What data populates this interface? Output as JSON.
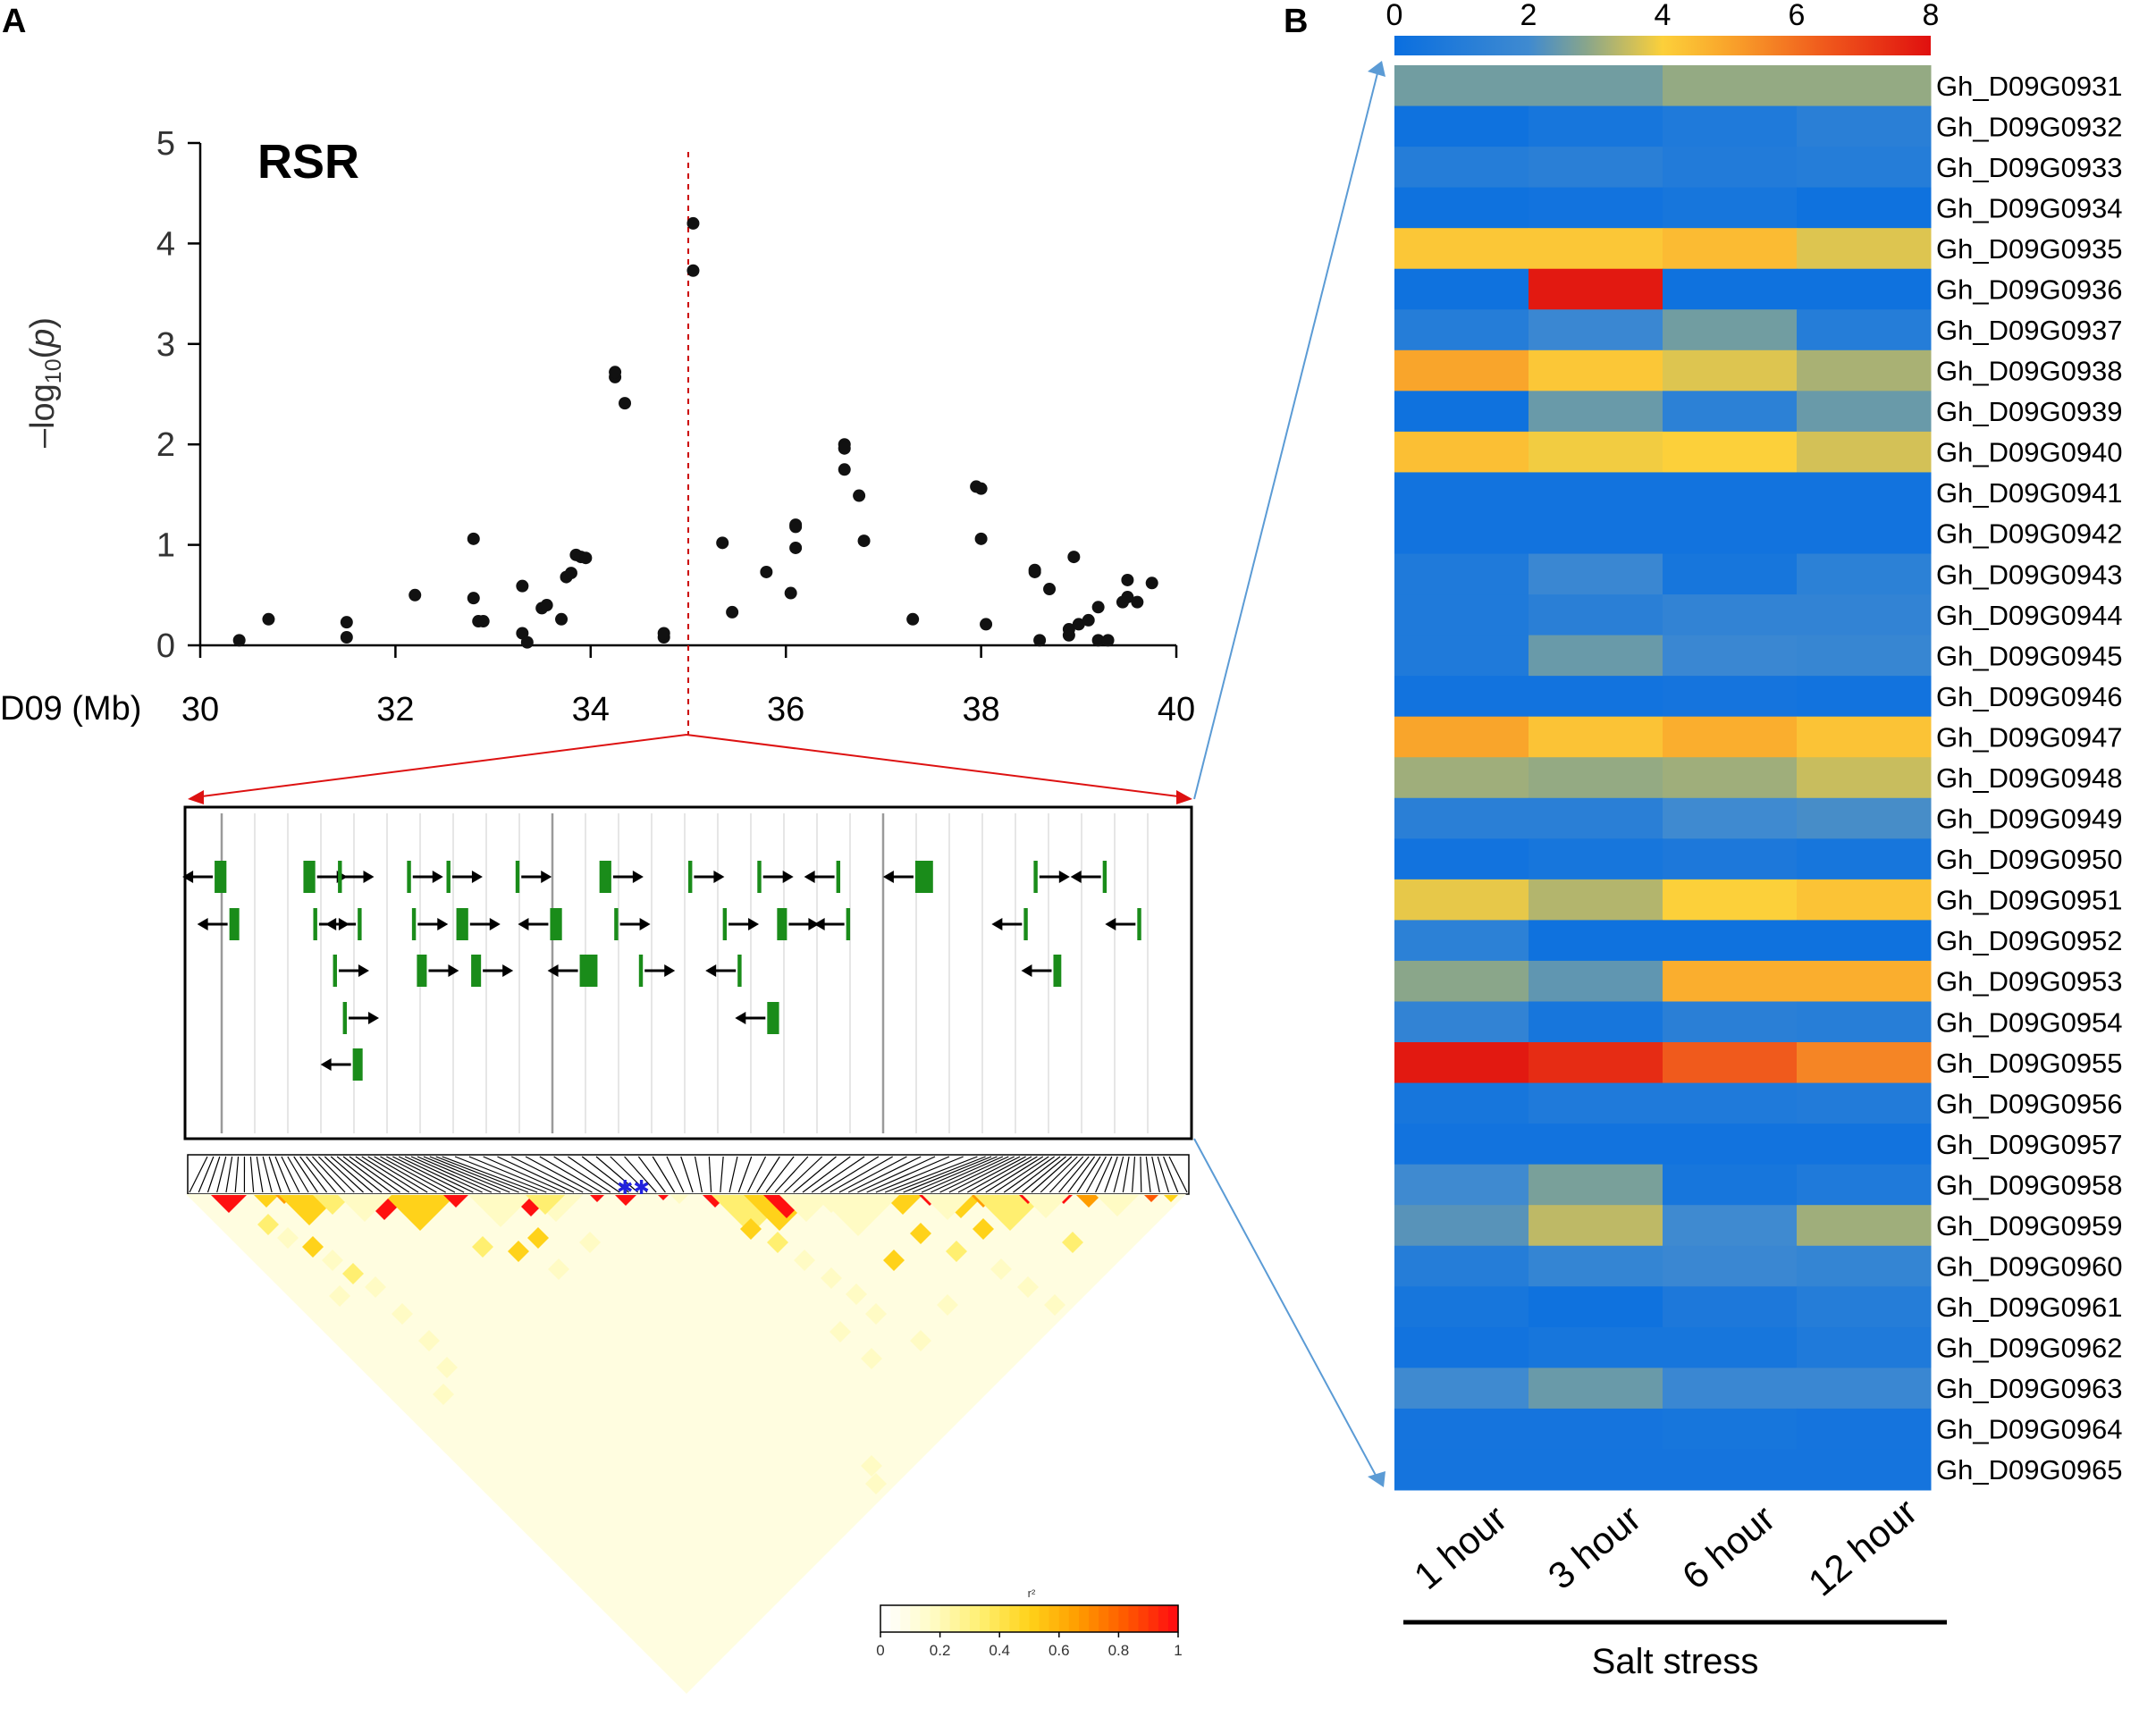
{
  "chart_data": [
    {
      "type": "scatter",
      "panel": "A",
      "title": "RSR",
      "xlabel": "D09 (Mb)",
      "ylabel": "-log10(p)",
      "xlim": [
        30,
        40
      ],
      "ylim": [
        0,
        5
      ],
      "xticks": [
        "30",
        "32",
        "34",
        "36",
        "38",
        "40"
      ],
      "yticks": [
        "0",
        "1",
        "2",
        "3",
        "4",
        "5"
      ],
      "threshold_x": 35.0,
      "points": [
        [
          30.4,
          0.05
        ],
        [
          30.7,
          0.26
        ],
        [
          31.5,
          0.23
        ],
        [
          31.5,
          0.08
        ],
        [
          32.2,
          0.5
        ],
        [
          32.8,
          1.06
        ],
        [
          32.8,
          0.47
        ],
        [
          32.85,
          0.24
        ],
        [
          32.9,
          0.24
        ],
        [
          33.3,
          0.59
        ],
        [
          33.3,
          0.12
        ],
        [
          33.35,
          0.03
        ],
        [
          33.5,
          0.37
        ],
        [
          33.55,
          0.4
        ],
        [
          33.7,
          0.26
        ],
        [
          33.75,
          0.68
        ],
        [
          33.8,
          0.72
        ],
        [
          33.85,
          0.9
        ],
        [
          33.9,
          0.88
        ],
        [
          33.95,
          0.87
        ],
        [
          34.25,
          2.67
        ],
        [
          34.25,
          2.72
        ],
        [
          34.35,
          2.41
        ],
        [
          34.75,
          0.08
        ],
        [
          34.75,
          0.12
        ],
        [
          35.05,
          4.2
        ],
        [
          35.05,
          3.73
        ],
        [
          35.35,
          1.02
        ],
        [
          35.45,
          0.33
        ],
        [
          35.8,
          0.73
        ],
        [
          36.05,
          0.52
        ],
        [
          36.1,
          1.18
        ],
        [
          36.1,
          1.2
        ],
        [
          36.1,
          0.97
        ],
        [
          36.6,
          2.0
        ],
        [
          36.6,
          1.96
        ],
        [
          36.6,
          1.75
        ],
        [
          36.75,
          1.49
        ],
        [
          36.8,
          1.04
        ],
        [
          37.3,
          0.26
        ],
        [
          37.95,
          1.58
        ],
        [
          38.0,
          1.56
        ],
        [
          38.0,
          1.06
        ],
        [
          38.05,
          0.21
        ],
        [
          38.55,
          0.73
        ],
        [
          38.55,
          0.75
        ],
        [
          38.6,
          0.05
        ],
        [
          38.7,
          0.56
        ],
        [
          38.9,
          0.1
        ],
        [
          38.9,
          0.16
        ],
        [
          38.95,
          0.88
        ],
        [
          39.0,
          0.21
        ],
        [
          39.1,
          0.25
        ],
        [
          39.2,
          0.38
        ],
        [
          39.2,
          0.05
        ],
        [
          39.3,
          0.05
        ],
        [
          39.45,
          0.43
        ],
        [
          39.5,
          0.65
        ],
        [
          39.5,
          0.48
        ],
        [
          39.6,
          0.43
        ],
        [
          39.75,
          0.62
        ]
      ]
    },
    {
      "type": "gene-track",
      "panel": "A",
      "genes": [
        {
          "x": 0.02,
          "row": 0,
          "dir": "L",
          "w": 0.012
        },
        {
          "x": 0.11,
          "row": 0,
          "dir": "R",
          "w": 0.012
        },
        {
          "x": 0.145,
          "row": 0,
          "dir": "R",
          "w": 0.004
        },
        {
          "x": 0.215,
          "row": 0,
          "dir": "R",
          "w": 0.004
        },
        {
          "x": 0.255,
          "row": 0,
          "dir": "R",
          "w": 0.004
        },
        {
          "x": 0.325,
          "row": 0,
          "dir": "R",
          "w": 0.004
        },
        {
          "x": 0.41,
          "row": 0,
          "dir": "R",
          "w": 0.012
        },
        {
          "x": 0.5,
          "row": 0,
          "dir": "R",
          "w": 0.004
        },
        {
          "x": 0.57,
          "row": 0,
          "dir": "R",
          "w": 0.004
        },
        {
          "x": 0.65,
          "row": 0,
          "dir": "L",
          "w": 0.004
        },
        {
          "x": 0.73,
          "row": 0,
          "dir": "L",
          "w": 0.018
        },
        {
          "x": 0.85,
          "row": 0,
          "dir": "R",
          "w": 0.004
        },
        {
          "x": 0.92,
          "row": 0,
          "dir": "L",
          "w": 0.004
        },
        {
          "x": 0.035,
          "row": 1,
          "dir": "L",
          "w": 0.01
        },
        {
          "x": 0.12,
          "row": 1,
          "dir": "R",
          "w": 0.004
        },
        {
          "x": 0.165,
          "row": 1,
          "dir": "L",
          "w": 0.004
        },
        {
          "x": 0.22,
          "row": 1,
          "dir": "R",
          "w": 0.004
        },
        {
          "x": 0.265,
          "row": 1,
          "dir": "R",
          "w": 0.012
        },
        {
          "x": 0.36,
          "row": 1,
          "dir": "L",
          "w": 0.012
        },
        {
          "x": 0.425,
          "row": 1,
          "dir": "R",
          "w": 0.004
        },
        {
          "x": 0.535,
          "row": 1,
          "dir": "R",
          "w": 0.004
        },
        {
          "x": 0.59,
          "row": 1,
          "dir": "R",
          "w": 0.01
        },
        {
          "x": 0.66,
          "row": 1,
          "dir": "L",
          "w": 0.004
        },
        {
          "x": 0.84,
          "row": 1,
          "dir": "L",
          "w": 0.004
        },
        {
          "x": 0.955,
          "row": 1,
          "dir": "L",
          "w": 0.004
        },
        {
          "x": 0.14,
          "row": 2,
          "dir": "R",
          "w": 0.004
        },
        {
          "x": 0.225,
          "row": 2,
          "dir": "R",
          "w": 0.01
        },
        {
          "x": 0.28,
          "row": 2,
          "dir": "R",
          "w": 0.01
        },
        {
          "x": 0.39,
          "row": 2,
          "dir": "L",
          "w": 0.018
        },
        {
          "x": 0.45,
          "row": 2,
          "dir": "R",
          "w": 0.004
        },
        {
          "x": 0.55,
          "row": 2,
          "dir": "L",
          "w": 0.004
        },
        {
          "x": 0.87,
          "row": 2,
          "dir": "L",
          "w": 0.008
        },
        {
          "x": 0.15,
          "row": 3,
          "dir": "R",
          "w": 0.004
        },
        {
          "x": 0.58,
          "row": 3,
          "dir": "L",
          "w": 0.012
        },
        {
          "x": 0.16,
          "row": 4,
          "dir": "L",
          "w": 0.01
        }
      ]
    },
    {
      "type": "heatmap",
      "panel": "A",
      "subtype": "linkage-disequilibrium",
      "legend_title": "r²",
      "legend_ticks": [
        "0",
        "0.2",
        "0.4",
        "0.6",
        "0.8",
        "1"
      ],
      "colormap": [
        "#ffffff",
        "#fffbc4",
        "#ffef70",
        "#ffd21a",
        "#ff9d00",
        "#ff5a00",
        "#ff1010"
      ]
    },
    {
      "type": "heatmap",
      "panel": "B",
      "colorbar_ticks": [
        "0",
        "2",
        "4",
        "6",
        "8"
      ],
      "vmin": 0,
      "vmax": 8,
      "columns": [
        "1 hour",
        "3 hour",
        "6 hour",
        "12 hour"
      ],
      "xlabel": "Salt stress",
      "rows": [
        {
          "gene": "Gh_D09G0931",
          "values": [
            2.6,
            2.6,
            3.0,
            3.0
          ]
        },
        {
          "gene": "Gh_D09G0932",
          "values": [
            0.2,
            0.5,
            0.8,
            1.2
          ]
        },
        {
          "gene": "Gh_D09G0933",
          "values": [
            1.0,
            1.2,
            0.9,
            1.0
          ]
        },
        {
          "gene": "Gh_D09G0934",
          "values": [
            0.2,
            0.3,
            0.5,
            0.2
          ]
        },
        {
          "gene": "Gh_D09G0935",
          "values": [
            4.2,
            4.2,
            4.5,
            3.7
          ]
        },
        {
          "gene": "Gh_D09G0936",
          "values": [
            0.2,
            7.8,
            0.2,
            0.2
          ]
        },
        {
          "gene": "Gh_D09G0937",
          "values": [
            1.0,
            1.8,
            2.6,
            1.0
          ]
        },
        {
          "gene": "Gh_D09G0938",
          "values": [
            5.0,
            4.2,
            3.7,
            3.2
          ]
        },
        {
          "gene": "Gh_D09G0939",
          "values": [
            0.2,
            2.5,
            1.3,
            2.5
          ]
        },
        {
          "gene": "Gh_D09G0940",
          "values": [
            4.4,
            3.9,
            4.0,
            3.6
          ]
        },
        {
          "gene": "Gh_D09G0941",
          "values": [
            0.3,
            0.3,
            0.3,
            0.3
          ]
        },
        {
          "gene": "Gh_D09G0942",
          "values": [
            0.3,
            0.3,
            0.3,
            0.3
          ]
        },
        {
          "gene": "Gh_D09G0943",
          "values": [
            0.8,
            1.8,
            0.5,
            1.3
          ]
        },
        {
          "gene": "Gh_D09G0944",
          "values": [
            0.8,
            1.2,
            1.5,
            1.5
          ]
        },
        {
          "gene": "Gh_D09G0945",
          "values": [
            0.8,
            2.5,
            1.8,
            1.7
          ]
        },
        {
          "gene": "Gh_D09G0946",
          "values": [
            0.3,
            0.3,
            0.4,
            0.3
          ]
        },
        {
          "gene": "Gh_D09G0947",
          "values": [
            5.0,
            4.3,
            4.8,
            4.3
          ]
        },
        {
          "gene": "Gh_D09G0948",
          "values": [
            3.1,
            3.0,
            3.1,
            3.5
          ]
        },
        {
          "gene": "Gh_D09G0949",
          "values": [
            1.2,
            1.2,
            2.0,
            2.1
          ]
        },
        {
          "gene": "Gh_D09G0950",
          "values": [
            0.3,
            0.5,
            0.7,
            0.5
          ]
        },
        {
          "gene": "Gh_D09G0951",
          "values": [
            3.8,
            3.3,
            4.0,
            4.3
          ]
        },
        {
          "gene": "Gh_D09G0952",
          "values": [
            1.3,
            0.2,
            0.2,
            0.2
          ]
        },
        {
          "gene": "Gh_D09G0953",
          "values": [
            2.9,
            2.4,
            4.8,
            4.8
          ]
        },
        {
          "gene": "Gh_D09G0954",
          "values": [
            1.5,
            0.5,
            1.2,
            1.1
          ]
        },
        {
          "gene": "Gh_D09G0955",
          "values": [
            7.8,
            7.4,
            6.4,
            5.6
          ]
        },
        {
          "gene": "Gh_D09G0956",
          "values": [
            0.5,
            0.8,
            0.8,
            0.9
          ]
        },
        {
          "gene": "Gh_D09G0957",
          "values": [
            0.3,
            0.3,
            0.3,
            0.3
          ]
        },
        {
          "gene": "Gh_D09G0958",
          "values": [
            2.0,
            2.7,
            0.5,
            0.8
          ]
        },
        {
          "gene": "Gh_D09G0959",
          "values": [
            2.3,
            3.4,
            2.0,
            3.1
          ]
        },
        {
          "gene": "Gh_D09G0960",
          "values": [
            1.0,
            1.6,
            1.8,
            1.6
          ]
        },
        {
          "gene": "Gh_D09G0961",
          "values": [
            0.5,
            0.2,
            0.7,
            1.0
          ]
        },
        {
          "gene": "Gh_D09G0962",
          "values": [
            0.3,
            0.5,
            0.5,
            0.8
          ]
        },
        {
          "gene": "Gh_D09G0963",
          "values": [
            2.0,
            2.5,
            1.8,
            1.8
          ]
        },
        {
          "gene": "Gh_D09G0964",
          "values": [
            0.4,
            0.4,
            0.5,
            0.4
          ]
        },
        {
          "gene": "Gh_D09G0965",
          "values": [
            0.4,
            0.4,
            0.4,
            0.4
          ]
        }
      ]
    }
  ],
  "panels": {
    "a_label": "A",
    "b_label": "B"
  },
  "colors": {
    "dots": "#111111",
    "threshold": "#cc0000",
    "zoom_red": "#dd1111",
    "zoom_blue": "#5b9bd5",
    "gene_green": "#1a8c1a"
  }
}
